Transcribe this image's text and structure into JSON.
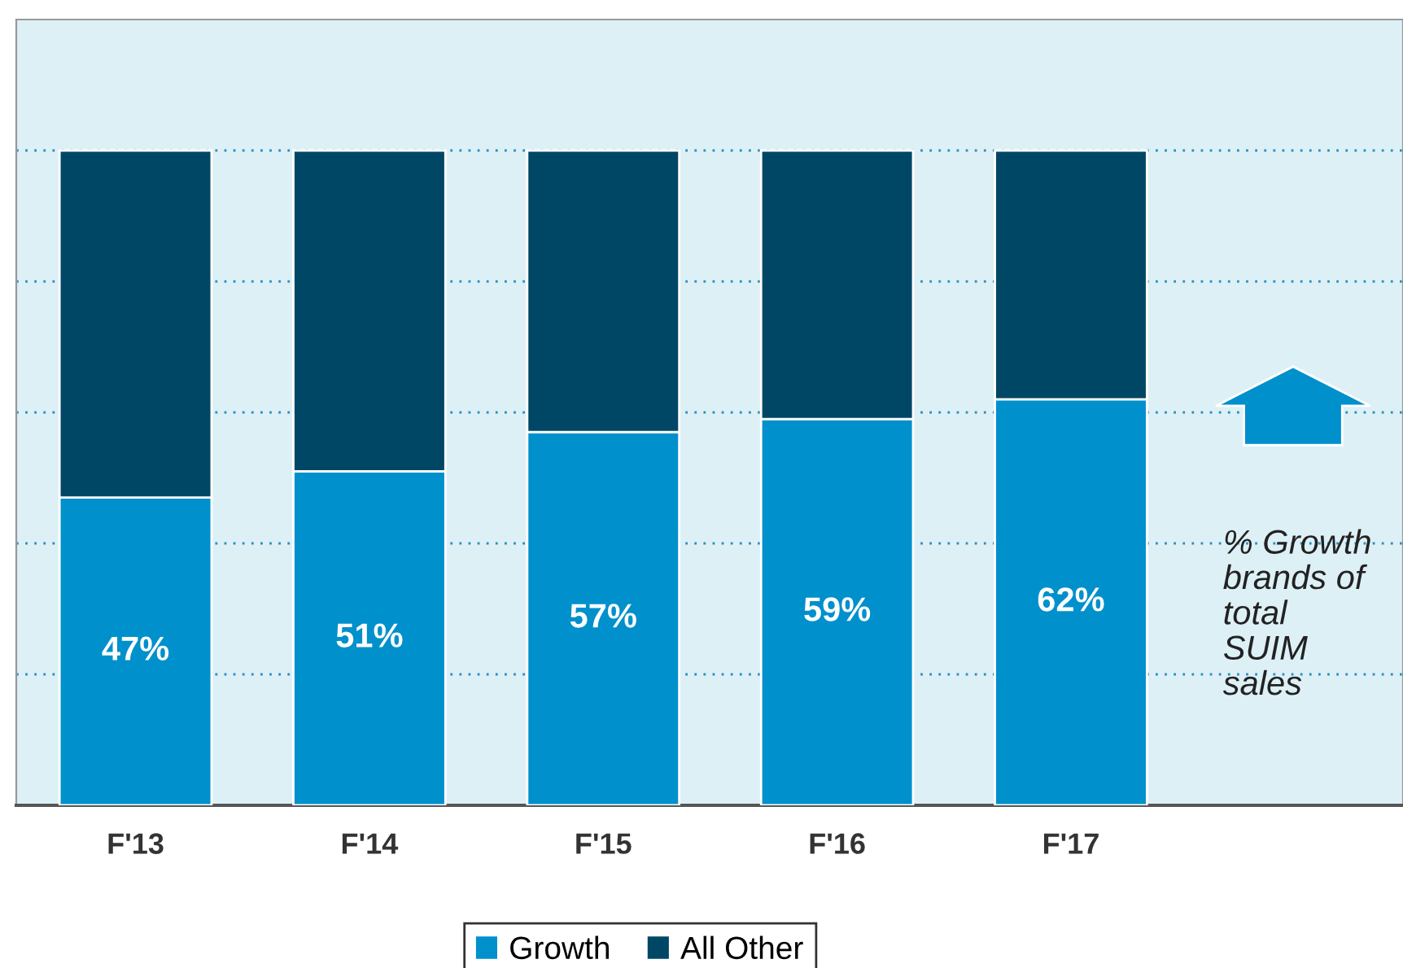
{
  "chart_data": {
    "type": "bar",
    "stacked": true,
    "categories": [
      "F'13",
      "F'14",
      "F'15",
      "F'16",
      "F'17"
    ],
    "series": [
      {
        "name": "Growth",
        "color": "#0090cc",
        "values": [
          47,
          51,
          57,
          59,
          62
        ],
        "value_labels": [
          "47%",
          "51%",
          "57%",
          "59%",
          "62%"
        ]
      },
      {
        "name": "All Other",
        "color": "#004766",
        "values": [
          53,
          49,
          43,
          41,
          38
        ]
      }
    ],
    "ylim": [
      0,
      120
    ],
    "yticks": [
      {
        "value": 20,
        "label": null
      },
      {
        "value": 40,
        "label": null
      },
      {
        "value": 60,
        "label": null
      },
      {
        "value": 80,
        "label": null
      },
      {
        "value": 100,
        "label": null
      }
    ],
    "grid": "y",
    "legend": "bottom",
    "tick_labels": "x",
    "annotations": [
      "% Growth brands of total SUIM sales"
    ]
  }
}
